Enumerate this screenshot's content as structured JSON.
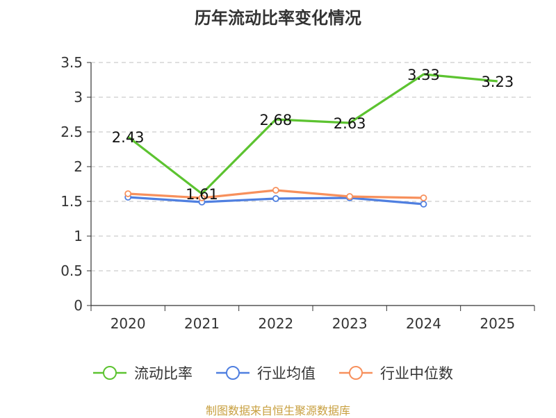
{
  "chart_data": {
    "type": "line",
    "title": "历年流动比率变化情况",
    "categories": [
      "2020",
      "2021",
      "2022",
      "2023",
      "2024",
      "2025"
    ],
    "ylim": [
      0,
      3.5
    ],
    "yticks": [
      "0",
      "0.5",
      "1",
      "1.5",
      "2",
      "2.5",
      "3",
      "3.5"
    ],
    "grid": true,
    "legend_position": "bottom",
    "series": [
      {
        "name": "流动比率",
        "values": [
          2.43,
          1.61,
          2.68,
          2.63,
          3.33,
          3.23
        ],
        "labels": [
          "2.43",
          "1.61",
          "2.68",
          "2.63",
          "3.33",
          "3.23"
        ],
        "color": "#5cc330",
        "show_markers": false,
        "show_labels": true
      },
      {
        "name": "行业均值",
        "values": [
          1.56,
          1.49,
          1.54,
          1.55,
          1.46,
          null
        ],
        "color": "#4f7fe0",
        "show_markers": true,
        "show_labels": false
      },
      {
        "name": "行业中位数",
        "values": [
          1.61,
          1.55,
          1.66,
          1.57,
          1.55,
          null
        ],
        "color": "#f7905c",
        "show_markers": true,
        "show_labels": false
      }
    ]
  },
  "footer": "制图数据来自恒生聚源数据库"
}
